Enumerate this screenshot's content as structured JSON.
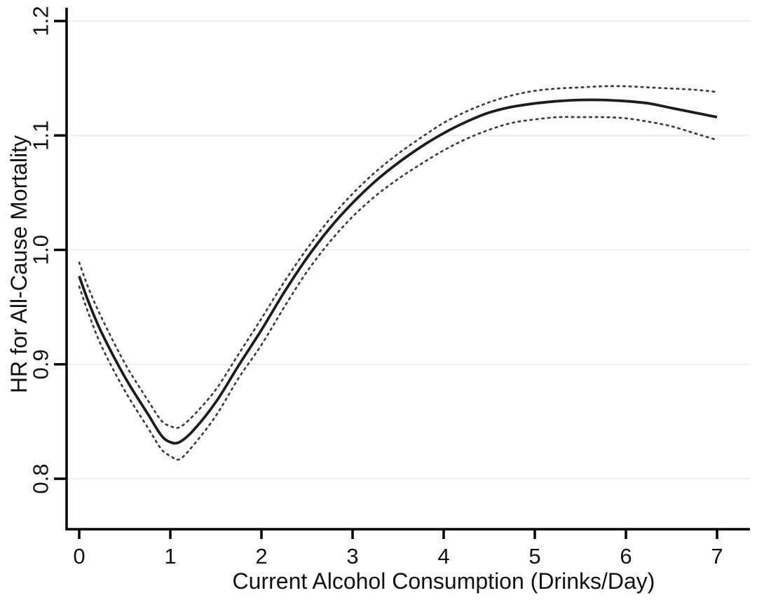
{
  "chart_data": {
    "type": "line",
    "title": "",
    "xlabel": "Current Alcohol Consumption (Drinks/Day)",
    "ylabel": "HR for All-Cause Mortality",
    "xlim": [
      -0.14,
      7.36
    ],
    "ylim": [
      0.756,
      1.212
    ],
    "grid": "horizontal-only",
    "legend": "none",
    "xticks": {
      "values": [
        0,
        1,
        2,
        3,
        4,
        5,
        6,
        7
      ],
      "labels": [
        "0",
        "1",
        "2",
        "3",
        "4",
        "5",
        "6",
        "7"
      ]
    },
    "yticks": {
      "values": [
        0.8,
        0.9,
        1.0,
        1.1,
        1.2
      ],
      "labels": [
        "0.8",
        "0.9",
        "1.0",
        "1.1",
        "1.2"
      ]
    },
    "x": [
      0,
      0.1,
      0.25,
      0.5,
      0.75,
      0.9,
      1,
      1.1,
      1.25,
      1.5,
      1.75,
      2,
      2.25,
      2.5,
      2.75,
      3,
      3.25,
      3.5,
      3.75,
      4,
      4.25,
      4.5,
      4.75,
      5,
      5.25,
      5.5,
      5.75,
      6,
      6.25,
      6.5,
      6.75,
      7
    ],
    "series": [
      {
        "name": "hazard-ratio-point-estimate",
        "style": "solid",
        "color": "#1c1c1c",
        "width": 3.8,
        "values": [
          0.977,
          0.955,
          0.927,
          0.889,
          0.857,
          0.838,
          0.832,
          0.832,
          0.842,
          0.867,
          0.899,
          0.93,
          0.963,
          0.993,
          1.019,
          1.041,
          1.06,
          1.076,
          1.09,
          1.102,
          1.112,
          1.12,
          1.125,
          1.128,
          1.13,
          1.131,
          1.131,
          1.13,
          1.128,
          1.124,
          1.12,
          1.116
        ]
      },
      {
        "name": "upper-95ci",
        "style": "dashed",
        "color": "#3c3c3c",
        "width": 2.7,
        "values": [
          0.989,
          0.967,
          0.94,
          0.901,
          0.869,
          0.851,
          0.846,
          0.845,
          0.855,
          0.878,
          0.909,
          0.94,
          0.972,
          1.001,
          1.027,
          1.049,
          1.068,
          1.084,
          1.098,
          1.111,
          1.121,
          1.129,
          1.135,
          1.139,
          1.141,
          1.142,
          1.143,
          1.143,
          1.142,
          1.141,
          1.14,
          1.138
        ]
      },
      {
        "name": "lower-95ci",
        "style": "dashed",
        "color": "#3c3c3c",
        "width": 2.7,
        "values": [
          0.968,
          0.945,
          0.915,
          0.877,
          0.845,
          0.826,
          0.82,
          0.817,
          0.829,
          0.855,
          0.888,
          0.917,
          0.95,
          0.981,
          1.007,
          1.029,
          1.047,
          1.062,
          1.075,
          1.087,
          1.097,
          1.105,
          1.111,
          1.114,
          1.116,
          1.116,
          1.116,
          1.115,
          1.112,
          1.108,
          1.102,
          1.096
        ]
      }
    ]
  },
  "colors": {
    "background": "#ffffff",
    "gridline": "#ededed",
    "axis": "#000000",
    "text": "#111111"
  }
}
